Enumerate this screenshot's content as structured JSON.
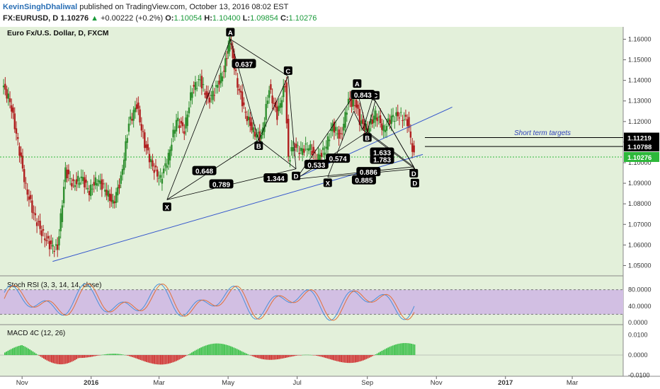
{
  "header": {
    "author": "KevinSinghDhaliwal",
    "published_text": "published on TradingView.com, October 13, 2016 08:02 EST",
    "symbol": "FX:EURUSD, D",
    "last_price": "1.10276",
    "change_arrow": "▲",
    "change": "+0.00222 (+0.2%)",
    "open_label": "O:",
    "open": "1.10054",
    "high_label": "H:",
    "high": "1.10400",
    "low_label": "L:",
    "low": "1.09854",
    "close_label": "C:",
    "close": "1.10276"
  },
  "colors": {
    "background": "#e3f0da",
    "up_candle": "#2f8f2f",
    "down_candle": "#b02020",
    "trendline": "#3355cc",
    "pattern": "#000000",
    "stoch_band": "#d2bfe3",
    "stoch_k": "#4a90d9",
    "stoch_d": "#e0703a",
    "macd_up": "#3cc04a",
    "macd_down": "#d03030",
    "current_price": "#2db83a"
  },
  "chart_data": {
    "type": "candlestick",
    "title": "Euro Fx/U.S. Dollar, D, FXCM",
    "ylim": [
      1.045,
      1.166
    ],
    "y_ticks": [
      "1.16000",
      "1.15000",
      "1.14000",
      "1.13000",
      "1.12000",
      "1.11000",
      "1.10000",
      "1.09000",
      "1.08000",
      "1.07000",
      "1.06000",
      "1.05000"
    ],
    "x_ticks": [
      "Nov",
      "2016",
      "Mar",
      "May",
      "Jul",
      "Sep",
      "Nov",
      "2017",
      "Mar"
    ],
    "x_tick_dates": [
      "2015-11-01",
      "2016-01-01",
      "2016-03-01",
      "2016-05-01",
      "2016-07-01",
      "2016-09-01",
      "2016-11-01",
      "2017-01-01",
      "2017-03-01"
    ],
    "x_range": [
      "2015-10-15",
      "2017-04-15"
    ],
    "close_series": [
      [
        "2015-10-15",
        1.138
      ],
      [
        "2015-10-22",
        1.13
      ],
      [
        "2015-10-29",
        1.11
      ],
      [
        "2015-11-05",
        1.088
      ],
      [
        "2015-11-12",
        1.075
      ],
      [
        "2015-11-19",
        1.066
      ],
      [
        "2015-11-26",
        1.06
      ],
      [
        "2015-12-03",
        1.058
      ],
      [
        "2015-12-10",
        1.096
      ],
      [
        "2015-12-17",
        1.089
      ],
      [
        "2015-12-24",
        1.093
      ],
      [
        "2015-12-31",
        1.086
      ],
      [
        "2016-01-07",
        1.092
      ],
      [
        "2016-01-14",
        1.087
      ],
      [
        "2016-01-21",
        1.08
      ],
      [
        "2016-01-28",
        1.092
      ],
      [
        "2016-02-04",
        1.119
      ],
      [
        "2016-02-11",
        1.128
      ],
      [
        "2016-02-18",
        1.109
      ],
      [
        "2016-02-25",
        1.098
      ],
      [
        "2016-03-03",
        1.092
      ],
      [
        "2016-03-10",
        1.103
      ],
      [
        "2016-03-17",
        1.121
      ],
      [
        "2016-03-24",
        1.116
      ],
      [
        "2016-03-31",
        1.136
      ],
      [
        "2016-04-07",
        1.14
      ],
      [
        "2016-04-14",
        1.13
      ],
      [
        "2016-04-21",
        1.136
      ],
      [
        "2016-04-28",
        1.145
      ],
      [
        "2016-05-03",
        1.16
      ],
      [
        "2016-05-10",
        1.138
      ],
      [
        "2016-05-17",
        1.124
      ],
      [
        "2016-05-24",
        1.115
      ],
      [
        "2016-05-31",
        1.112
      ],
      [
        "2016-06-07",
        1.136
      ],
      [
        "2016-06-14",
        1.123
      ],
      [
        "2016-06-21",
        1.138
      ],
      [
        "2016-06-24",
        1.101
      ],
      [
        "2016-06-28",
        1.108
      ],
      [
        "2016-07-05",
        1.106
      ],
      [
        "2016-07-12",
        1.108
      ],
      [
        "2016-07-19",
        1.102
      ],
      [
        "2016-07-26",
        1.106
      ],
      [
        "2016-08-02",
        1.118
      ],
      [
        "2016-08-09",
        1.112
      ],
      [
        "2016-08-16",
        1.13
      ],
      [
        "2016-08-23",
        1.128
      ],
      [
        "2016-08-26",
        1.12
      ],
      [
        "2016-09-02",
        1.116
      ],
      [
        "2016-09-09",
        1.124
      ],
      [
        "2016-09-16",
        1.116
      ],
      [
        "2016-09-23",
        1.122
      ],
      [
        "2016-09-30",
        1.123
      ],
      [
        "2016-10-07",
        1.12
      ],
      [
        "2016-10-13",
        1.103
      ]
    ],
    "horizontal_levels": [
      {
        "price": 1.11219,
        "label": "1.11219"
      },
      {
        "price": 1.10788,
        "label": "1.10788"
      }
    ],
    "current_price_label": "1.10276",
    "current_price_value": 1.10276,
    "annotation_text": "Short term targets",
    "pattern_labels": [
      "A",
      "C",
      "X",
      "B",
      "D",
      "A",
      "C",
      "B",
      "X",
      "D",
      "D"
    ],
    "ratio_labels": [
      "0.637",
      "0.648",
      "0.789",
      "1.344",
      "0.843",
      "0.533",
      "0.574",
      "1.783",
      "0.886",
      "0.885",
      "1.633"
    ],
    "stoch_rsi": {
      "title": "Stoch RSI (3, 3, 14, 14, close)",
      "y_ticks": [
        "80.0000",
        "40.0000",
        "0.0000"
      ],
      "band": [
        20,
        80
      ]
    },
    "macd": {
      "title": "MACD 4C (12, 26)",
      "y_ticks": [
        "0.0100",
        "0.0000",
        "-0.0100"
      ]
    }
  }
}
